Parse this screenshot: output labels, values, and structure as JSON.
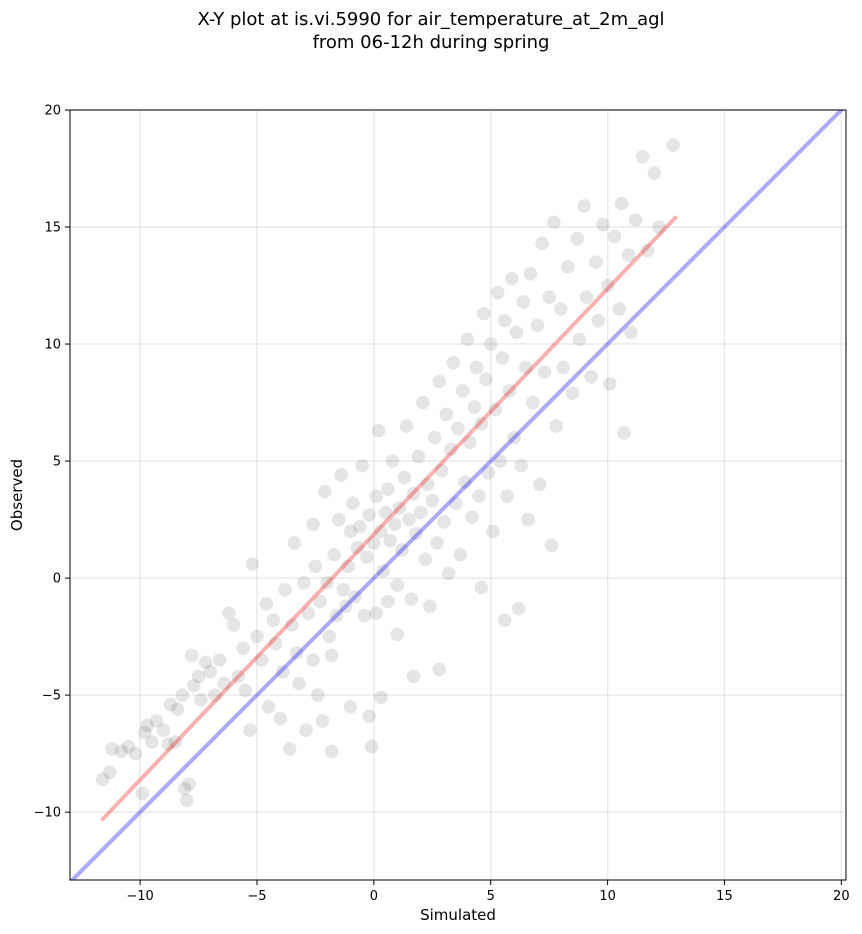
{
  "chart_data": {
    "type": "scatter",
    "title_line1": "X-Y plot at is.vi.5990 for air_temperature_at_2m_agl",
    "title_line2": "from 06-12h during spring",
    "xlabel": "Simulated",
    "ylabel": "Observed",
    "xlim": [
      -13,
      20.2
    ],
    "ylim": [
      -12.9,
      20
    ],
    "xticks": [
      -10,
      -5,
      0,
      5,
      10,
      15,
      20
    ],
    "yticks": [
      -10,
      -5,
      0,
      5,
      10,
      15,
      20
    ],
    "xtick_labels": [
      "−10",
      "−5",
      "0",
      "5",
      "10",
      "15",
      "20"
    ],
    "ytick_labels": [
      "−10",
      "−5",
      "0",
      "5",
      "10",
      "15",
      "20"
    ],
    "grid": true,
    "point_color": "#000000",
    "point_alpha": 0.1,
    "series": [
      {
        "role": "scatter",
        "points": [
          [
            -11.6,
            -8.6
          ],
          [
            -11.3,
            -8.3
          ],
          [
            -11.2,
            -7.3
          ],
          [
            -10.8,
            -7.4
          ],
          [
            -10.5,
            -7.2
          ],
          [
            -10.2,
            -7.5
          ],
          [
            -9.9,
            -9.2
          ],
          [
            -9.8,
            -6.6
          ],
          [
            -9.7,
            -6.3
          ],
          [
            -9.5,
            -7.0
          ],
          [
            -9.3,
            -6.1
          ],
          [
            -9.0,
            -6.5
          ],
          [
            -8.8,
            -7.1
          ],
          [
            -8.7,
            -5.4
          ],
          [
            -8.5,
            -7.0
          ],
          [
            -8.4,
            -5.6
          ],
          [
            -8.2,
            -5.0
          ],
          [
            -8.1,
            -9.0
          ],
          [
            -8.0,
            -9.5
          ],
          [
            -7.9,
            -8.8
          ],
          [
            -7.8,
            -3.3
          ],
          [
            -7.7,
            -4.6
          ],
          [
            -7.5,
            -4.2
          ],
          [
            -7.4,
            -5.2
          ],
          [
            -7.2,
            -3.6
          ],
          [
            -7.0,
            -4.0
          ],
          [
            -6.8,
            -5.0
          ],
          [
            -6.6,
            -3.5
          ],
          [
            -6.4,
            -4.5
          ],
          [
            -6.2,
            -1.5
          ],
          [
            -6.0,
            -2.0
          ],
          [
            -5.8,
            -4.2
          ],
          [
            -5.6,
            -3.0
          ],
          [
            -5.5,
            -4.8
          ],
          [
            -5.3,
            -6.5
          ],
          [
            -5.2,
            0.6
          ],
          [
            -5.0,
            -2.5
          ],
          [
            -4.8,
            -3.5
          ],
          [
            -4.6,
            -1.1
          ],
          [
            -4.5,
            -5.5
          ],
          [
            -4.3,
            -1.8
          ],
          [
            -4.2,
            -2.8
          ],
          [
            -4.0,
            -6.0
          ],
          [
            -3.9,
            -4.0
          ],
          [
            -3.8,
            -0.5
          ],
          [
            -3.6,
            -7.3
          ],
          [
            -3.5,
            -2.0
          ],
          [
            -3.4,
            1.5
          ],
          [
            -3.3,
            -3.2
          ],
          [
            -3.2,
            -4.5
          ],
          [
            -3.0,
            -0.2
          ],
          [
            -2.9,
            -6.5
          ],
          [
            -2.8,
            -1.5
          ],
          [
            -2.6,
            2.3
          ],
          [
            -2.6,
            -3.5
          ],
          [
            -2.5,
            0.5
          ],
          [
            -2.4,
            -5.0
          ],
          [
            -2.3,
            -1.0
          ],
          [
            -2.2,
            -6.1
          ],
          [
            -2.1,
            3.7
          ],
          [
            -2.0,
            -0.2
          ],
          [
            -1.9,
            -2.5
          ],
          [
            -1.8,
            -3.3
          ],
          [
            -1.8,
            -7.4
          ],
          [
            -1.7,
            1.0
          ],
          [
            -1.6,
            -1.6
          ],
          [
            -1.5,
            2.5
          ],
          [
            -1.4,
            4.4
          ],
          [
            -1.3,
            -0.5
          ],
          [
            -1.2,
            -1.2
          ],
          [
            -1.1,
            0.5
          ],
          [
            -1.0,
            2.0
          ],
          [
            -1.0,
            -5.5
          ],
          [
            -0.9,
            3.2
          ],
          [
            -0.8,
            -0.8
          ],
          [
            -0.7,
            1.3
          ],
          [
            -0.6,
            2.2
          ],
          [
            -0.5,
            4.8
          ],
          [
            -0.4,
            -1.6
          ],
          [
            -0.3,
            0.9
          ],
          [
            -0.2,
            2.7
          ],
          [
            -0.2,
            -5.9
          ],
          [
            -0.1,
            -7.2
          ],
          [
            0.0,
            1.5
          ],
          [
            0.1,
            3.5
          ],
          [
            0.1,
            -1.5
          ],
          [
            0.2,
            6.3
          ],
          [
            0.3,
            2.0
          ],
          [
            0.3,
            -5.1
          ],
          [
            0.4,
            0.3
          ],
          [
            0.5,
            2.8
          ],
          [
            0.6,
            3.8
          ],
          [
            0.6,
            -1.0
          ],
          [
            0.7,
            1.6
          ],
          [
            0.8,
            5.0
          ],
          [
            0.9,
            2.3
          ],
          [
            1.0,
            -0.3
          ],
          [
            1.0,
            -2.4
          ],
          [
            1.1,
            3.0
          ],
          [
            1.2,
            1.2
          ],
          [
            1.3,
            4.3
          ],
          [
            1.4,
            6.5
          ],
          [
            1.5,
            2.5
          ],
          [
            1.6,
            -0.9
          ],
          [
            1.7,
            3.6
          ],
          [
            1.7,
            -4.2
          ],
          [
            1.8,
            1.9
          ],
          [
            1.9,
            5.2
          ],
          [
            2.0,
            2.8
          ],
          [
            2.1,
            7.5
          ],
          [
            2.2,
            0.8
          ],
          [
            2.3,
            4.0
          ],
          [
            2.4,
            -1.2
          ],
          [
            2.5,
            3.3
          ],
          [
            2.6,
            6.0
          ],
          [
            2.7,
            1.5
          ],
          [
            2.8,
            8.4
          ],
          [
            2.8,
            -3.9
          ],
          [
            2.9,
            4.6
          ],
          [
            3.0,
            2.4
          ],
          [
            3.1,
            7.0
          ],
          [
            3.2,
            0.2
          ],
          [
            3.3,
            5.5
          ],
          [
            3.4,
            9.2
          ],
          [
            3.5,
            3.2
          ],
          [
            3.6,
            6.4
          ],
          [
            3.7,
            1.0
          ],
          [
            3.8,
            8.0
          ],
          [
            3.9,
            4.1
          ],
          [
            4.0,
            10.2
          ],
          [
            4.1,
            5.8
          ],
          [
            4.2,
            2.6
          ],
          [
            4.3,
            7.3
          ],
          [
            4.4,
            9.0
          ],
          [
            4.5,
            3.5
          ],
          [
            4.6,
            6.6
          ],
          [
            4.6,
            -0.4
          ],
          [
            4.7,
            11.3
          ],
          [
            4.8,
            8.5
          ],
          [
            4.9,
            4.5
          ],
          [
            5.0,
            10.0
          ],
          [
            5.1,
            2.0
          ],
          [
            5.2,
            7.2
          ],
          [
            5.3,
            12.2
          ],
          [
            5.4,
            5.0
          ],
          [
            5.5,
            9.4
          ],
          [
            5.6,
            11.0
          ],
          [
            5.6,
            -1.8
          ],
          [
            5.7,
            3.5
          ],
          [
            5.8,
            8.0
          ],
          [
            5.9,
            12.8
          ],
          [
            6.0,
            6.0
          ],
          [
            6.1,
            10.5
          ],
          [
            6.2,
            -1.3
          ],
          [
            6.3,
            4.8
          ],
          [
            6.4,
            11.8
          ],
          [
            6.5,
            9.0
          ],
          [
            6.6,
            2.5
          ],
          [
            6.7,
            13.0
          ],
          [
            6.8,
            7.5
          ],
          [
            7.0,
            10.8
          ],
          [
            7.1,
            4.0
          ],
          [
            7.2,
            14.3
          ],
          [
            7.3,
            8.8
          ],
          [
            7.5,
            12.0
          ],
          [
            7.6,
            1.4
          ],
          [
            7.7,
            15.2
          ],
          [
            7.8,
            6.5
          ],
          [
            8.0,
            11.5
          ],
          [
            8.1,
            9.0
          ],
          [
            8.3,
            13.3
          ],
          [
            8.5,
            7.9
          ],
          [
            8.7,
            14.5
          ],
          [
            8.8,
            10.2
          ],
          [
            9.0,
            15.9
          ],
          [
            9.1,
            12.0
          ],
          [
            9.3,
            8.6
          ],
          [
            9.5,
            13.5
          ],
          [
            9.6,
            11.0
          ],
          [
            9.8,
            15.1
          ],
          [
            10.0,
            12.5
          ],
          [
            10.1,
            8.3
          ],
          [
            10.3,
            14.6
          ],
          [
            10.5,
            11.5
          ],
          [
            10.6,
            16.0
          ],
          [
            10.7,
            6.2
          ],
          [
            10.9,
            13.8
          ],
          [
            11.0,
            10.5
          ],
          [
            11.2,
            15.3
          ],
          [
            11.5,
            18.0
          ],
          [
            11.7,
            14.0
          ],
          [
            12.0,
            17.3
          ],
          [
            12.2,
            15.0
          ],
          [
            12.8,
            18.5
          ]
        ]
      },
      {
        "role": "identity",
        "name": "",
        "color": "#0000ee",
        "x": [
          -13,
          20.2
        ],
        "y": [
          -13,
          20.2
        ]
      },
      {
        "role": "fit",
        "name": "",
        "color": "#ee1111",
        "x": [
          -11.6,
          12.9
        ],
        "y": [
          -10.3,
          15.4
        ]
      }
    ]
  }
}
